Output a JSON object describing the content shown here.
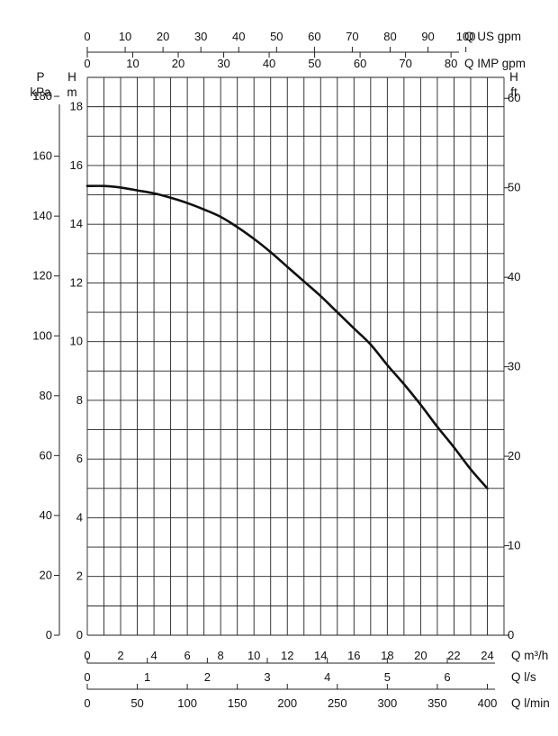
{
  "chart_data": {
    "type": "line",
    "title": "",
    "grid": true,
    "x_axes": {
      "q_m3h": {
        "label": "Q m³/h",
        "min": 0,
        "max": 25,
        "ticks": [
          0,
          2,
          4,
          6,
          8,
          10,
          12,
          14,
          16,
          18,
          20,
          22,
          24
        ]
      },
      "q_ls": {
        "label": "Q l/s",
        "ticks": [
          0,
          1,
          2,
          3,
          4,
          5,
          6
        ],
        "factor_from_m3h": 3.6
      },
      "q_lmin": {
        "label": "Q l/min",
        "ticks": [
          0,
          50,
          100,
          150,
          200,
          250,
          300,
          350,
          400
        ],
        "factor_from_m3h": 0.06
      },
      "q_us_gpm": {
        "label": "Q US gpm",
        "ticks": [
          0,
          10,
          20,
          30,
          40,
          50,
          60,
          70,
          80,
          90,
          100
        ],
        "factor_from_m3h": 0.22712
      },
      "q_imp_gpm": {
        "label": "Q IMP gpm",
        "ticks": [
          0,
          10,
          20,
          30,
          40,
          50,
          60,
          70,
          80
        ],
        "factor_from_m3h": 0.27277
      }
    },
    "y_axes": {
      "h_m": {
        "label": [
          "H",
          "m"
        ],
        "min": 0,
        "max": 19,
        "ticks": [
          0,
          2,
          4,
          6,
          8,
          10,
          12,
          14,
          16,
          18
        ]
      },
      "p_kpa": {
        "label": [
          "P",
          "kPa"
        ],
        "ticks": [
          0,
          20,
          40,
          60,
          80,
          100,
          120,
          140,
          160,
          180
        ],
        "factor_to_m": 0.10197
      },
      "h_ft": {
        "label": [
          "H",
          "ft"
        ],
        "ticks": [
          0,
          10,
          20,
          30,
          40,
          50,
          60
        ],
        "factor_to_m": 0.3048
      }
    },
    "series": [
      {
        "color": "#111111",
        "x": [
          0,
          1,
          2,
          3,
          4,
          5,
          6,
          7,
          8,
          9,
          10,
          11,
          12,
          13,
          14,
          15,
          16,
          17,
          18,
          19,
          20,
          21,
          22,
          23,
          24
        ],
        "y": [
          15.3,
          15.3,
          15.25,
          15.15,
          15.05,
          14.9,
          14.72,
          14.5,
          14.25,
          13.9,
          13.5,
          13.05,
          12.55,
          12.05,
          11.55,
          11.0,
          10.45,
          9.9,
          9.2,
          8.55,
          7.85,
          7.1,
          6.4,
          5.65,
          5.0
        ]
      }
    ]
  }
}
